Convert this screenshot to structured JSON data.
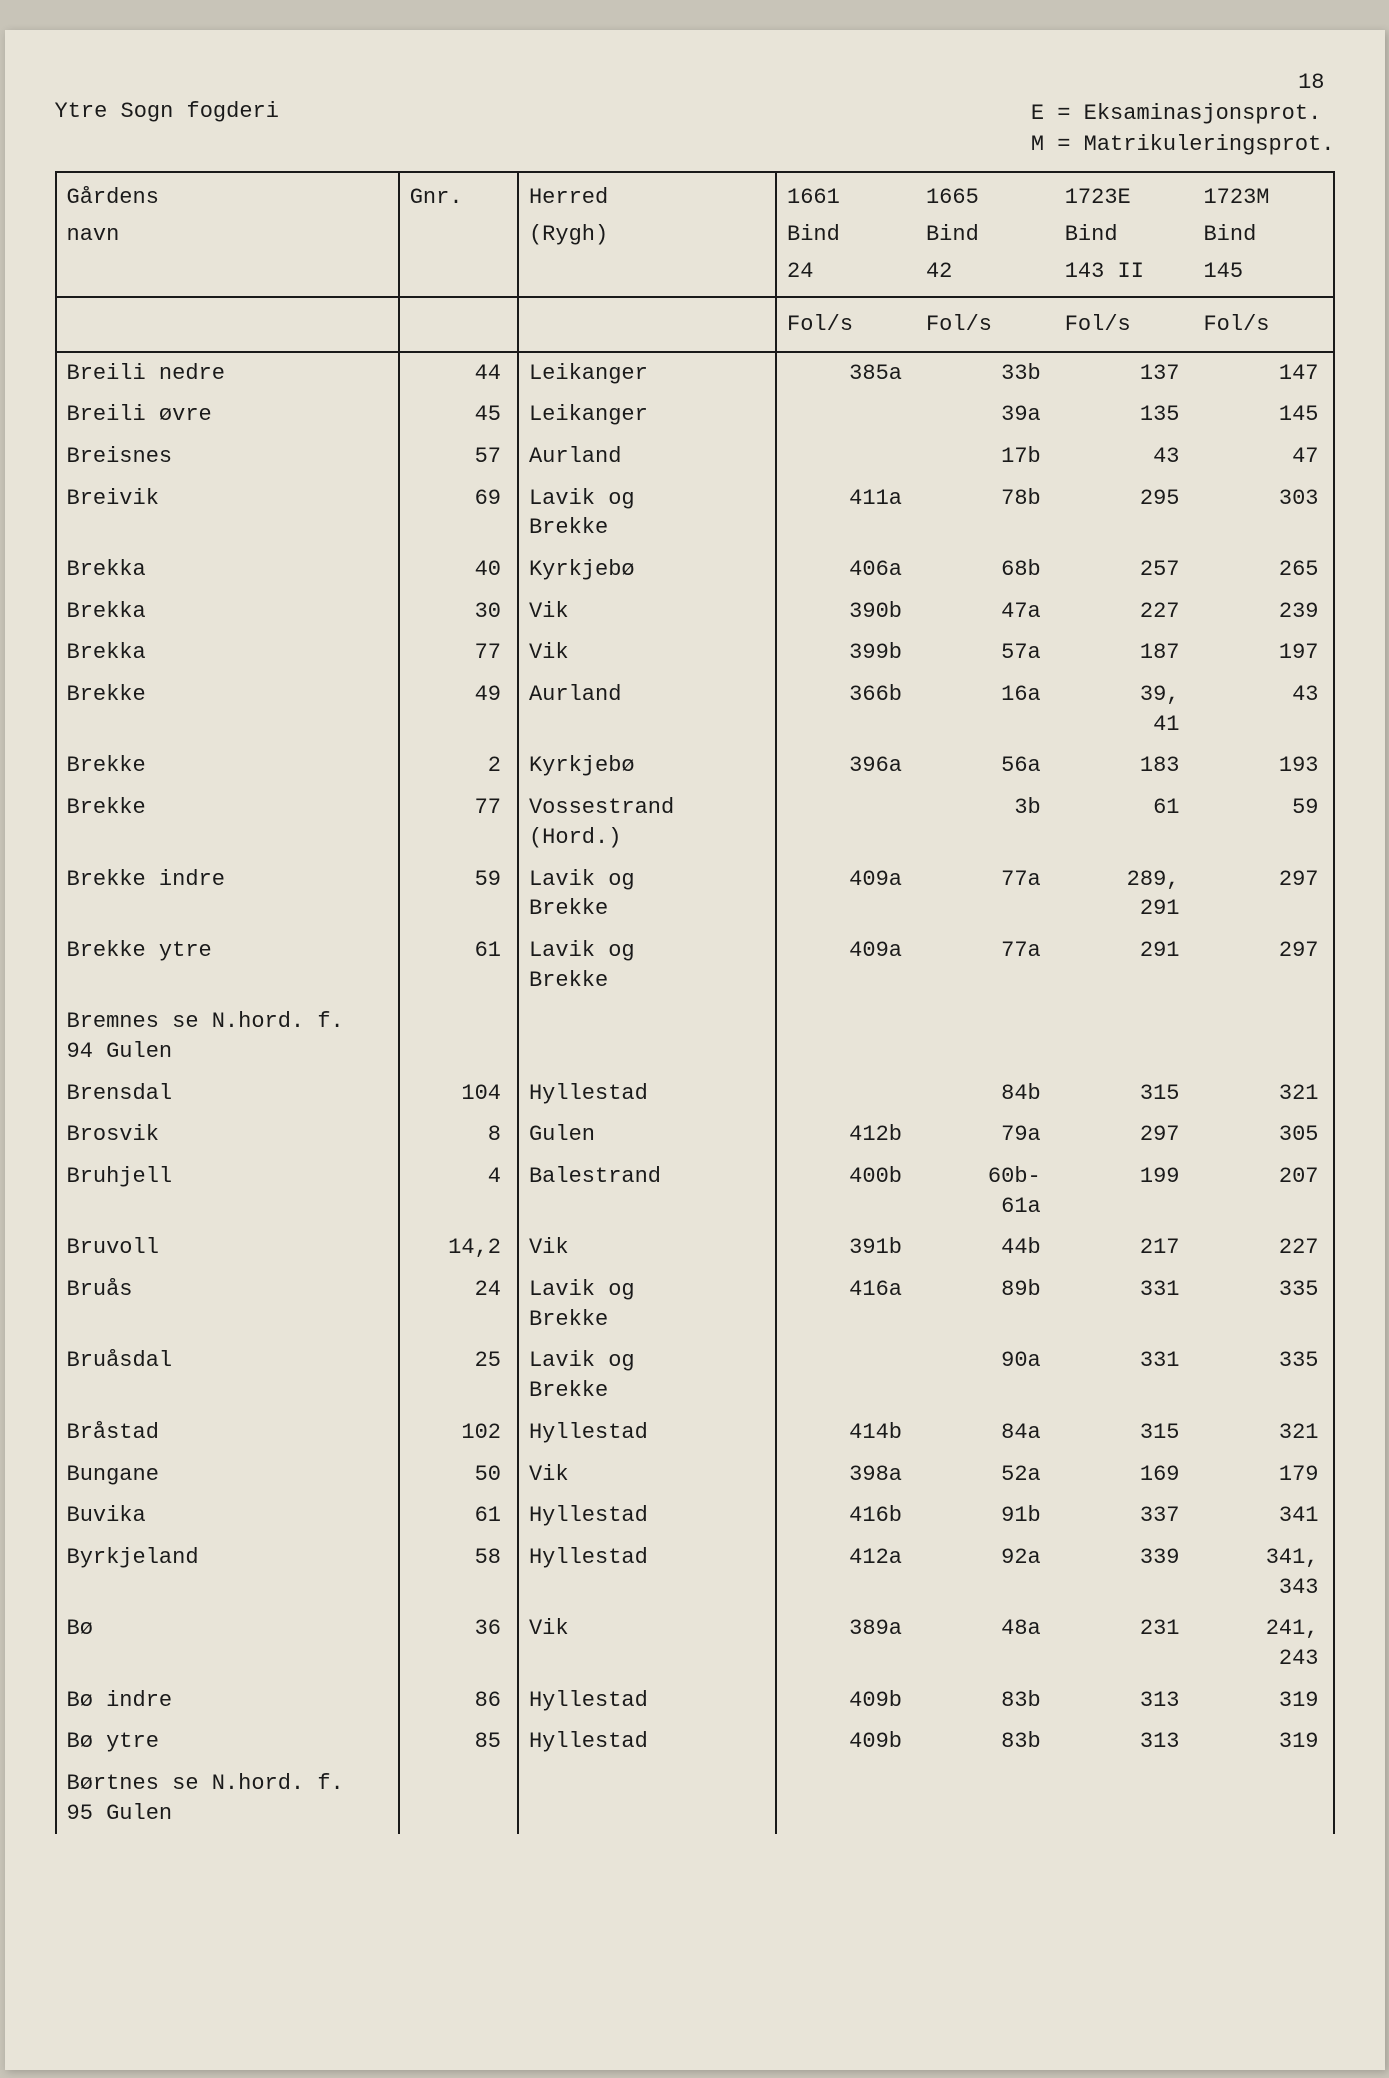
{
  "page_number": "18",
  "title_left": "Ytre Sogn fogderi",
  "legend_line1": "E = Eksaminasjonsprot.",
  "legend_line2": "M = Matrikuleringsprot.",
  "columns": {
    "name_l1": "Gårdens",
    "name_l2": "navn",
    "gnr": "Gnr.",
    "herred_l1": "Herred",
    "herred_l2": "(Rygh)",
    "c1_l1": "1661",
    "c1_l2": "Bind",
    "c1_l3": "24",
    "c2_l1": "1665",
    "c2_l2": "Bind",
    "c2_l3": "42",
    "c3_l1": "1723E",
    "c3_l2": "Bind",
    "c3_l3": "143 II",
    "c4_l1": "1723M",
    "c4_l2": "Bind",
    "c4_l3": "145",
    "fols": "Fol/s"
  },
  "rows": [
    {
      "name": "Breili nedre",
      "gnr": "44",
      "herred": "Leikanger",
      "f1": "385a",
      "f2": "33b",
      "f3": "137",
      "f4": "147"
    },
    {
      "name": "Breili øvre",
      "gnr": "45",
      "herred": "Leikanger",
      "f1": "",
      "f2": "39a",
      "f3": "135",
      "f4": "145"
    },
    {
      "name": "Breisnes",
      "gnr": "57",
      "herred": "Aurland",
      "f1": "",
      "f2": "17b",
      "f3": "43",
      "f4": "47"
    },
    {
      "name": "Breivik",
      "gnr": "69",
      "herred": "Lavik og\nBrekke",
      "f1": "411a",
      "f2": "78b",
      "f3": "295",
      "f4": "303"
    },
    {
      "name": "Brekka",
      "gnr": "40",
      "herred": "Kyrkjebø",
      "f1": "406a",
      "f2": "68b",
      "f3": "257",
      "f4": "265"
    },
    {
      "name": "Brekka",
      "gnr": "30",
      "herred": "Vik",
      "f1": "390b",
      "f2": "47a",
      "f3": "227",
      "f4": "239"
    },
    {
      "name": "Brekka",
      "gnr": "77",
      "herred": "Vik",
      "f1": "399b",
      "f2": "57a",
      "f3": "187",
      "f4": "197"
    },
    {
      "name": "Brekke",
      "gnr": "49",
      "herred": "Aurland",
      "f1": "366b",
      "f2": "16a",
      "f3": "39,\n41",
      "f4": "43"
    },
    {
      "name": "Brekke",
      "gnr": "2",
      "herred": "Kyrkjebø",
      "f1": "396a",
      "f2": "56a",
      "f3": "183",
      "f4": "193"
    },
    {
      "name": "Brekke",
      "gnr": "77",
      "herred": "Vossestrand\n(Hord.)",
      "f1": "",
      "f2": "3b",
      "f3": "61",
      "f4": "59"
    },
    {
      "name": "Brekke indre",
      "gnr": "59",
      "herred": "Lavik og\nBrekke",
      "f1": "409a",
      "f2": "77a",
      "f3": "289,\n291",
      "f4": "297"
    },
    {
      "name": "Brekke ytre",
      "gnr": "61",
      "herred": "Lavik og\nBrekke",
      "f1": "409a",
      "f2": "77a",
      "f3": "291",
      "f4": "297"
    },
    {
      "name": "Bremnes se N.hord. f.\n94 Gulen",
      "gnr": "",
      "herred": "",
      "f1": "",
      "f2": "",
      "f3": "",
      "f4": ""
    },
    {
      "name": "Brensdal",
      "gnr": "104",
      "herred": "Hyllestad",
      "f1": "",
      "f2": "84b",
      "f3": "315",
      "f4": "321"
    },
    {
      "name": "Brosvik",
      "gnr": "8",
      "herred": "Gulen",
      "f1": "412b",
      "f2": "79a",
      "f3": "297",
      "f4": "305"
    },
    {
      "name": "Bruhjell",
      "gnr": "4",
      "herred": "Balestrand",
      "f1": "400b",
      "f2": "60b-\n61a",
      "f3": "199",
      "f4": "207"
    },
    {
      "name": "Bruvoll",
      "gnr": "14,2",
      "herred": "Vik",
      "f1": "391b",
      "f2": "44b",
      "f3": "217",
      "f4": "227"
    },
    {
      "name": "Bruås",
      "gnr": "24",
      "herred": "Lavik og\nBrekke",
      "f1": "416a",
      "f2": "89b",
      "f3": "331",
      "f4": "335"
    },
    {
      "name": "Bruåsdal",
      "gnr": "25",
      "herred": "Lavik og\nBrekke",
      "f1": "",
      "f2": "90a",
      "f3": "331",
      "f4": "335"
    },
    {
      "name": "Bråstad",
      "gnr": "102",
      "herred": "Hyllestad",
      "f1": "414b",
      "f2": "84a",
      "f3": "315",
      "f4": "321"
    },
    {
      "name": "Bungane",
      "gnr": "50",
      "herred": "Vik",
      "f1": "398a",
      "f2": "52a",
      "f3": "169",
      "f4": "179"
    },
    {
      "name": "Buvika",
      "gnr": "61",
      "herred": "Hyllestad",
      "f1": "416b",
      "f2": "91b",
      "f3": "337",
      "f4": "341"
    },
    {
      "name": "Byrkjeland",
      "gnr": "58",
      "herred": "Hyllestad",
      "f1": "412a",
      "f2": "92a",
      "f3": "339",
      "f4": "341,\n343"
    },
    {
      "name": "Bø",
      "gnr": "36",
      "herred": "Vik",
      "f1": "389a",
      "f2": "48a",
      "f3": "231",
      "f4": "241,\n243"
    },
    {
      "name": "Bø indre",
      "gnr": "86",
      "herred": "Hyllestad",
      "f1": "409b",
      "f2": "83b",
      "f3": "313",
      "f4": "319"
    },
    {
      "name": "Bø ytre",
      "gnr": "85",
      "herred": "Hyllestad",
      "f1": "409b",
      "f2": "83b",
      "f3": "313",
      "f4": "319"
    },
    {
      "name": "Børtnes se N.hord. f.\n95 Gulen",
      "gnr": "",
      "herred": "",
      "f1": "",
      "f2": "",
      "f3": "",
      "f4": ""
    }
  ]
}
